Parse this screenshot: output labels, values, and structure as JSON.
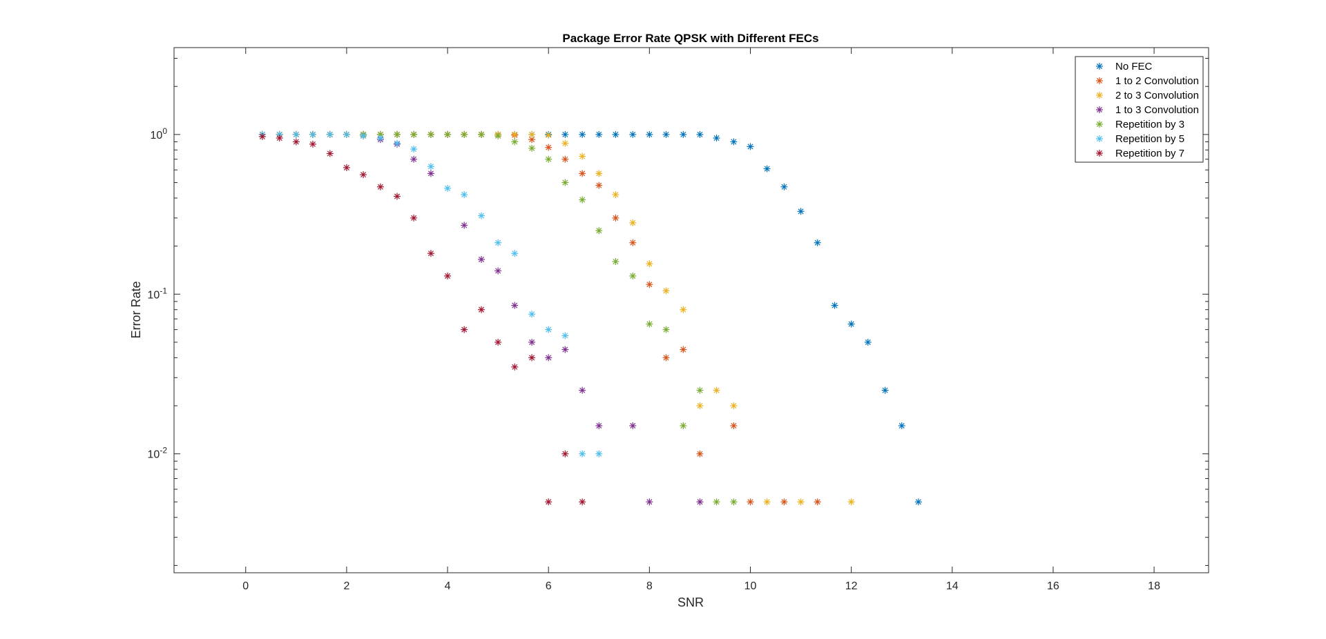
{
  "chart_data": {
    "type": "scatter",
    "title": "Package Error Rate QPSK with Different FECs",
    "xlabel": "SNR",
    "ylabel": "Error Rate",
    "xlim": [
      -1.42,
      19.08
    ],
    "ylim": [
      0.0018,
      3.5
    ],
    "yscale": "log",
    "xticks": [
      0,
      2,
      4,
      6,
      8,
      10,
      12,
      14,
      16,
      18
    ],
    "yticks": [
      {
        "value": 1,
        "base": "10",
        "exp": "0"
      },
      {
        "value": 0.1,
        "base": "10",
        "exp": "-1"
      },
      {
        "value": 0.01,
        "base": "10",
        "exp": "-2"
      }
    ],
    "marker": "*",
    "grid": false,
    "legend_position": "top-right",
    "series": [
      {
        "name": "No FEC",
        "color": "#0072BD",
        "points": [
          [
            0.33,
            1
          ],
          [
            0.67,
            1
          ],
          [
            1,
            1
          ],
          [
            1.33,
            1
          ],
          [
            1.67,
            1
          ],
          [
            2,
            1
          ],
          [
            2.33,
            1
          ],
          [
            2.67,
            1
          ],
          [
            3,
            1
          ],
          [
            3.33,
            1
          ],
          [
            3.67,
            1
          ],
          [
            4,
            1
          ],
          [
            4.33,
            1
          ],
          [
            4.67,
            1
          ],
          [
            5,
            1
          ],
          [
            5.33,
            1
          ],
          [
            5.67,
            1
          ],
          [
            6,
            1
          ],
          [
            6.33,
            1
          ],
          [
            6.67,
            1
          ],
          [
            7,
            1
          ],
          [
            7.33,
            1
          ],
          [
            7.67,
            1
          ],
          [
            8,
            1
          ],
          [
            8.33,
            1
          ],
          [
            8.67,
            1
          ],
          [
            9,
            1
          ],
          [
            9.33,
            0.95
          ],
          [
            9.67,
            0.9
          ],
          [
            10,
            0.84
          ],
          [
            10.33,
            0.61
          ],
          [
            10.67,
            0.47
          ],
          [
            11,
            0.33
          ],
          [
            11.33,
            0.21
          ],
          [
            11.67,
            0.085
          ],
          [
            12,
            0.065
          ],
          [
            12.33,
            0.05
          ],
          [
            12.67,
            0.025
          ],
          [
            13,
            0.015
          ],
          [
            13.33,
            0.005
          ]
        ]
      },
      {
        "name": "1 to 2 Convolution",
        "color": "#D95319",
        "points": [
          [
            0.33,
            1
          ],
          [
            0.67,
            1
          ],
          [
            1,
            1
          ],
          [
            1.33,
            1
          ],
          [
            1.67,
            1
          ],
          [
            2,
            1
          ],
          [
            2.33,
            1
          ],
          [
            2.67,
            1
          ],
          [
            3,
            1
          ],
          [
            3.33,
            1
          ],
          [
            3.67,
            1
          ],
          [
            4,
            1
          ],
          [
            4.33,
            1
          ],
          [
            4.67,
            1
          ],
          [
            5,
            1
          ],
          [
            5.33,
            0.99
          ],
          [
            5.67,
            0.93
          ],
          [
            6,
            0.83
          ],
          [
            6.33,
            0.7
          ],
          [
            6.67,
            0.57
          ],
          [
            7,
            0.48
          ],
          [
            7.33,
            0.3
          ],
          [
            7.67,
            0.21
          ],
          [
            8,
            0.115
          ],
          [
            8.33,
            0.04
          ],
          [
            8.67,
            0.045
          ],
          [
            9,
            0.01
          ],
          [
            9.67,
            0.015
          ],
          [
            10,
            0.005
          ],
          [
            10.67,
            0.005
          ],
          [
            11.33,
            0.005
          ]
        ]
      },
      {
        "name": "2 to 3 Convolution",
        "color": "#EDB120",
        "points": [
          [
            0.33,
            1
          ],
          [
            0.67,
            1
          ],
          [
            1,
            1
          ],
          [
            1.33,
            1
          ],
          [
            1.67,
            1
          ],
          [
            2,
            1
          ],
          [
            2.33,
            1
          ],
          [
            2.67,
            1
          ],
          [
            3,
            1
          ],
          [
            3.33,
            1
          ],
          [
            3.67,
            1
          ],
          [
            4,
            1
          ],
          [
            4.33,
            1
          ],
          [
            4.67,
            1
          ],
          [
            5,
            1
          ],
          [
            5.33,
            1
          ],
          [
            5.67,
            1
          ],
          [
            6,
            0.99
          ],
          [
            6.33,
            0.88
          ],
          [
            6.67,
            0.73
          ],
          [
            7,
            0.57
          ],
          [
            7.33,
            0.42
          ],
          [
            7.67,
            0.28
          ],
          [
            8,
            0.155
          ],
          [
            8.33,
            0.105
          ],
          [
            8.67,
            0.08
          ],
          [
            9,
            0.02
          ],
          [
            9.33,
            0.025
          ],
          [
            9.67,
            0.02
          ],
          [
            10.33,
            0.005
          ],
          [
            11,
            0.005
          ],
          [
            12,
            0.005
          ]
        ]
      },
      {
        "name": "1 to 3 Convolution",
        "color": "#7E2F8E",
        "points": [
          [
            0.33,
            1
          ],
          [
            0.67,
            1
          ],
          [
            1,
            1
          ],
          [
            1.33,
            1
          ],
          [
            1.67,
            1
          ],
          [
            2,
            1
          ],
          [
            2.33,
            0.98
          ],
          [
            2.67,
            0.93
          ],
          [
            3,
            0.87
          ],
          [
            3.33,
            0.7
          ],
          [
            3.67,
            0.57
          ],
          [
            4.33,
            0.27
          ],
          [
            4.67,
            0.165
          ],
          [
            5,
            0.14
          ],
          [
            5.33,
            0.085
          ],
          [
            5.67,
            0.05
          ],
          [
            6,
            0.04
          ],
          [
            6.33,
            0.045
          ],
          [
            6.67,
            0.025
          ],
          [
            7,
            0.015
          ],
          [
            7.67,
            0.015
          ],
          [
            8,
            0.005
          ],
          [
            9,
            0.005
          ]
        ]
      },
      {
        "name": "Repetition by 3",
        "color": "#77AC30",
        "points": [
          [
            0.33,
            1
          ],
          [
            0.67,
            1
          ],
          [
            1,
            1
          ],
          [
            1.33,
            1
          ],
          [
            1.67,
            1
          ],
          [
            2,
            1
          ],
          [
            2.33,
            1
          ],
          [
            2.67,
            1
          ],
          [
            3,
            1
          ],
          [
            3.33,
            1
          ],
          [
            3.67,
            1
          ],
          [
            4,
            1
          ],
          [
            4.33,
            1
          ],
          [
            4.67,
            1
          ],
          [
            5,
            0.98
          ],
          [
            5.33,
            0.9
          ],
          [
            5.67,
            0.82
          ],
          [
            6,
            0.7
          ],
          [
            6.33,
            0.5
          ],
          [
            6.67,
            0.39
          ],
          [
            7,
            0.25
          ],
          [
            7.33,
            0.16
          ],
          [
            7.67,
            0.13
          ],
          [
            8,
            0.065
          ],
          [
            8.33,
            0.06
          ],
          [
            8.67,
            0.015
          ],
          [
            9,
            0.025
          ],
          [
            9.33,
            0.005
          ],
          [
            9.67,
            0.005
          ]
        ]
      },
      {
        "name": "Repetition by 5",
        "color": "#4DBEEE",
        "points": [
          [
            0.33,
            1
          ],
          [
            0.67,
            1
          ],
          [
            1,
            1
          ],
          [
            1.33,
            1
          ],
          [
            1.67,
            1
          ],
          [
            2,
            1
          ],
          [
            2.33,
            0.98
          ],
          [
            2.67,
            0.95
          ],
          [
            3,
            0.88
          ],
          [
            3.33,
            0.81
          ],
          [
            3.67,
            0.63
          ],
          [
            4,
            0.46
          ],
          [
            4.33,
            0.42
          ],
          [
            4.67,
            0.31
          ],
          [
            5,
            0.21
          ],
          [
            5.33,
            0.18
          ],
          [
            5.67,
            0.075
          ],
          [
            6,
            0.06
          ],
          [
            6.33,
            0.055
          ],
          [
            6.67,
            0.01
          ],
          [
            7,
            0.01
          ]
        ]
      },
      {
        "name": "Repetition by 7",
        "color": "#A2142F",
        "points": [
          [
            0.33,
            0.97
          ],
          [
            0.67,
            0.95
          ],
          [
            1,
            0.9
          ],
          [
            1.33,
            0.87
          ],
          [
            1.67,
            0.76
          ],
          [
            2,
            0.62
          ],
          [
            2.33,
            0.56
          ],
          [
            2.67,
            0.47
          ],
          [
            3,
            0.41
          ],
          [
            3.33,
            0.3
          ],
          [
            3.67,
            0.18
          ],
          [
            4,
            0.13
          ],
          [
            4.33,
            0.06
          ],
          [
            4.67,
            0.08
          ],
          [
            5,
            0.05
          ],
          [
            5.33,
            0.035
          ],
          [
            5.67,
            0.04
          ],
          [
            6,
            0.005
          ],
          [
            6.33,
            0.01
          ],
          [
            6.67,
            0.005
          ]
        ]
      }
    ]
  }
}
